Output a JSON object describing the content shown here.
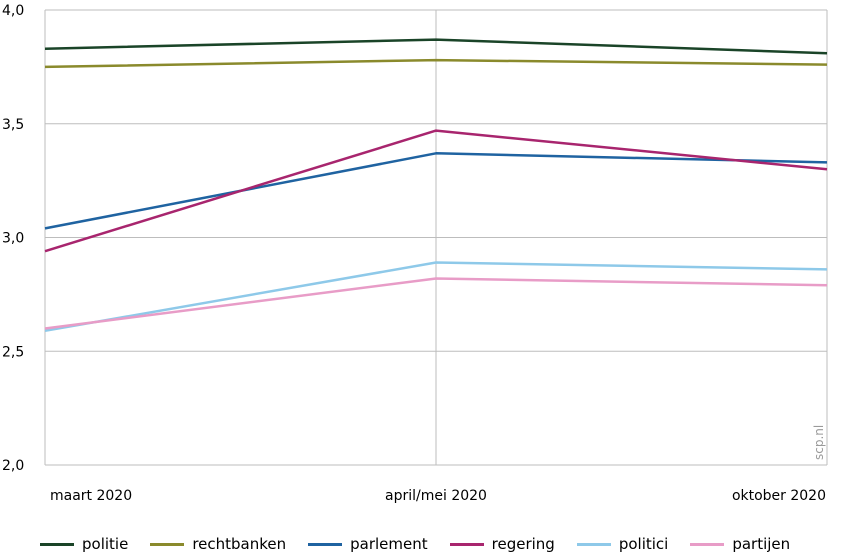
{
  "chart_data": {
    "type": "line",
    "x": [
      "maart 2020",
      "april/mei 2020",
      "oktober 2020"
    ],
    "ylim": [
      2.0,
      4.0
    ],
    "yticks": [
      "2,0",
      "2,5",
      "3,0",
      "3,5",
      "4,0"
    ],
    "grid": true,
    "legend_position": "bottom",
    "series": [
      {
        "name": "politie",
        "color": "#1a4428",
        "values": [
          3.83,
          3.87,
          3.81
        ]
      },
      {
        "name": "rechtbanken",
        "color": "#8a8a2c",
        "values": [
          3.75,
          3.78,
          3.76
        ]
      },
      {
        "name": "parlement",
        "color": "#1f63a1",
        "values": [
          3.04,
          3.37,
          3.33
        ]
      },
      {
        "name": "regering",
        "color": "#a8256e",
        "values": [
          2.94,
          3.47,
          3.3
        ]
      },
      {
        "name": "politici",
        "color": "#8ec9e9",
        "values": [
          2.59,
          2.89,
          2.86
        ]
      },
      {
        "name": "partijen",
        "color": "#e89cc7",
        "values": [
          2.6,
          2.82,
          2.79
        ]
      }
    ]
  },
  "watermark": "scp.nl"
}
